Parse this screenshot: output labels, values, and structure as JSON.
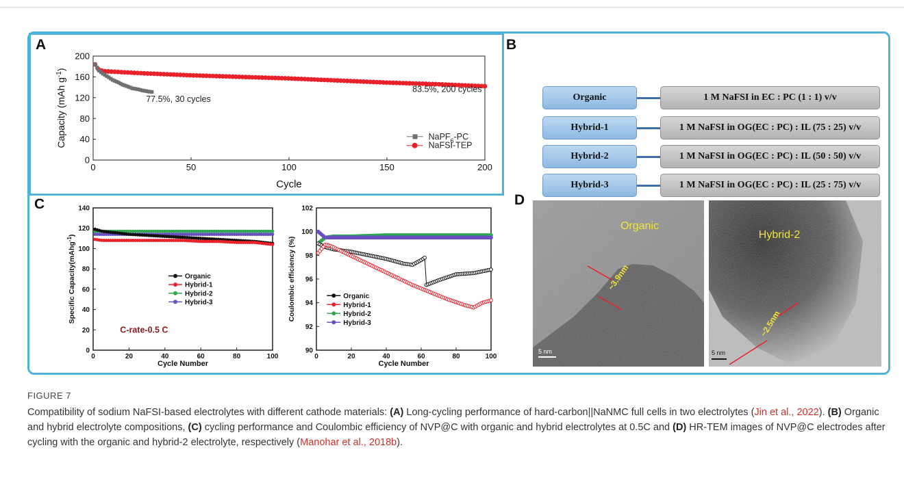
{
  "figure": {
    "label": "FIGURE 7",
    "caption": {
      "intro": "Compatibility of sodium NaFSI-based electrolytes with different cathode materials: ",
      "a_tag": "(A)",
      "a_text": " Long-cycling performance of hard-carbon||NaNMC full cells in two electrolytes (",
      "a_cite": "Jin et al., 2022",
      "a_end": "). ",
      "b_tag": "(B)",
      "b_text": " Organic and hybrid electrolyte compositions, ",
      "c_tag": "(C)",
      "c_text": " cycling performance and Coulombic efficiency of NVP@C with organic and hybrid electrolytes at 0.5C and ",
      "d_tag": "(D)",
      "d_text": " HR-TEM images of NVP@C electrodes after cycling with the organic and hybrid-2 electrolyte, respectively (",
      "d_cite": "Manohar et al., 2018b",
      "d_end": ")."
    }
  },
  "panels": {
    "a": {
      "letter": "A",
      "ylabel_main": "Capacity (mAh g",
      "ylabel_sup": "-1",
      "ylabel_end": ")",
      "xlabel": "Cycle",
      "annotation_1": "77.5%, 30 cycles",
      "annotation_2": "83.5%, 200 cycles",
      "legend_1_main": "NaPF",
      "legend_1_sub": "6",
      "legend_1_end": "-PC",
      "legend_2": "NaFSI-TEP"
    },
    "b": {
      "letter": "B",
      "rows": [
        {
          "name": "Organic",
          "composition": "1 M NaFSI in EC : PC (1 : 1) v/v"
        },
        {
          "name": "Hybrid-1",
          "composition": "1 M NaFSI in OG(EC : PC) : IL (75 : 25) v/v"
        },
        {
          "name": "Hybrid-2",
          "composition": "1 M NaFSI in OG(EC : PC) : IL (50 : 50) v/v"
        },
        {
          "name": "Hybrid-3",
          "composition": "1 M NaFSI in OG(EC : PC) : IL (25 : 75) v/v"
        }
      ]
    },
    "c": {
      "letter": "C",
      "left_ylabel_main": "Specific Capacity(mAhg",
      "left_ylabel_sup": "-1",
      "left_ylabel_end": ")",
      "left_xlabel": "Cycle Number",
      "rate_label": "C-rate-0.5 C",
      "right_ylabel": "Coulombic efficiency (%)",
      "right_xlabel": "Cycle Number",
      "legend": [
        "Organic",
        "Hybrid-1",
        "Hybrid-2",
        "Hybrid-3"
      ]
    },
    "d": {
      "letter": "D",
      "left_label": "Organic",
      "left_thickness": "~3.9nm",
      "left_scale": "5 nm",
      "right_label": "Hybrid-2",
      "right_thickness": "~2.5nm",
      "right_scale": "5 nm"
    }
  },
  "colors": {
    "frame": "#4fb3d9",
    "napf6": "#707070",
    "nafsi": "#e8212b",
    "organic": "#111111",
    "hybrid1": "#e8212b",
    "hybrid2": "#2fa84f",
    "hybrid3": "#6a4fc0",
    "tem_label": "#f1e43a"
  },
  "chart_data": [
    {
      "id": "A",
      "type": "line",
      "xlabel": "Cycle",
      "ylabel": "Capacity (mAh g-1)",
      "xlim": [
        0,
        200
      ],
      "ylim": [
        0,
        200
      ],
      "xticks": [
        0,
        50,
        100,
        150,
        200
      ],
      "yticks": [
        0,
        40,
        80,
        120,
        160,
        200
      ],
      "legend_position": "bottom-right",
      "series": [
        {
          "name": "NaPF6-PC",
          "x": [
            1,
            3,
            5,
            8,
            10,
            13,
            15,
            18,
            20,
            23,
            25,
            28,
            30
          ],
          "y": [
            184,
            172,
            166,
            159,
            154,
            149,
            145,
            141,
            138,
            136,
            134,
            132,
            131
          ]
        },
        {
          "name": "NaFSI-TEP",
          "x": [
            1,
            2,
            5,
            10,
            25,
            50,
            75,
            100,
            125,
            150,
            175,
            200
          ],
          "y": [
            184,
            176,
            171,
            170,
            167,
            163,
            160,
            157,
            153,
            149,
            146,
            142
          ]
        }
      ]
    },
    {
      "id": "C-left",
      "type": "line",
      "xlabel": "Cycle Number",
      "ylabel": "Specific Capacity(mAhg-1)",
      "xlim": [
        0,
        100
      ],
      "ylim": [
        0,
        140
      ],
      "xticks": [
        0,
        20,
        40,
        60,
        80,
        100
      ],
      "yticks": [
        0,
        20,
        40,
        60,
        80,
        100,
        120,
        140
      ],
      "series": [
        {
          "name": "Organic",
          "x": [
            1,
            5,
            10,
            20,
            30,
            40,
            50,
            60,
            70,
            80,
            90,
            100
          ],
          "y": [
            119,
            117,
            116,
            114,
            113,
            112,
            111,
            110,
            109,
            108,
            107,
            105
          ]
        },
        {
          "name": "Hybrid-1",
          "x": [
            1,
            5,
            10,
            20,
            30,
            40,
            50,
            60,
            70,
            80,
            90,
            100
          ],
          "y": [
            109,
            108,
            108,
            108,
            108,
            108,
            108,
            107,
            107,
            106,
            106,
            104
          ]
        },
        {
          "name": "Hybrid-2",
          "x": [
            1,
            5,
            10,
            20,
            30,
            40,
            50,
            60,
            70,
            80,
            90,
            100
          ],
          "y": [
            117,
            117,
            117,
            117,
            117,
            117,
            117,
            117,
            117,
            117,
            117,
            117
          ]
        },
        {
          "name": "Hybrid-3",
          "x": [
            1,
            5,
            10,
            20,
            30,
            40,
            50,
            60,
            70,
            80,
            90,
            100
          ],
          "y": [
            114,
            114,
            114,
            114,
            114,
            114,
            114,
            114,
            114,
            114,
            114,
            114
          ]
        }
      ]
    },
    {
      "id": "C-right",
      "type": "line",
      "xlabel": "Cycle Number",
      "ylabel": "Coulombic efficiency (%)",
      "xlim": [
        0,
        100
      ],
      "ylim": [
        90,
        102
      ],
      "xticks": [
        0,
        20,
        40,
        60,
        80,
        100
      ],
      "yticks": [
        90,
        92,
        94,
        96,
        98,
        100,
        102
      ],
      "series": [
        {
          "name": "Organic",
          "x": [
            1,
            5,
            10,
            20,
            30,
            40,
            50,
            55,
            60,
            62,
            63,
            70,
            80,
            90,
            100
          ],
          "y": [
            99.0,
            98.7,
            98.5,
            98.3,
            98.0,
            97.7,
            97.3,
            97.2,
            97.6,
            97.8,
            95.5,
            95.9,
            96.4,
            96.5,
            96.8
          ]
        },
        {
          "name": "Hybrid-1",
          "x": [
            1,
            5,
            8,
            15,
            25,
            35,
            45,
            55,
            65,
            75,
            85,
            90,
            95,
            100
          ],
          "y": [
            98.2,
            98.9,
            98.8,
            98.3,
            97.6,
            96.9,
            96.2,
            95.5,
            94.9,
            94.3,
            93.8,
            93.6,
            94.0,
            94.2
          ]
        },
        {
          "name": "Hybrid-2",
          "x": [
            1,
            5,
            10,
            20,
            40,
            60,
            80,
            100
          ],
          "y": [
            99.0,
            99.5,
            99.6,
            99.6,
            99.7,
            99.7,
            99.7,
            99.7
          ]
        },
        {
          "name": "Hybrid-3",
          "x": [
            1,
            5,
            10,
            20,
            40,
            60,
            80,
            100
          ],
          "y": [
            100.0,
            99.5,
            99.5,
            99.5,
            99.5,
            99.5,
            99.5,
            99.5
          ]
        }
      ]
    }
  ]
}
